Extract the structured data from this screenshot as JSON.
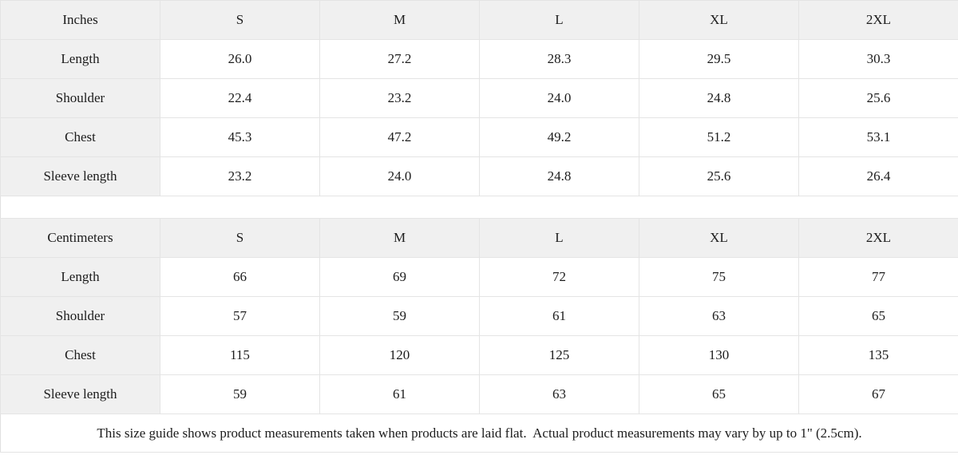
{
  "colors": {
    "header_bg": "#f0f0f0",
    "label_column_bg": "#f0f0f0",
    "border": "#e4e4e4",
    "text": "#1c1c1c",
    "background": "#ffffff"
  },
  "chart_data": {
    "type": "table",
    "tables": [
      {
        "unit_label": "Inches",
        "sizes": [
          "S",
          "M",
          "L",
          "XL",
          "2XL"
        ],
        "rows": [
          {
            "label": "Length",
            "values": [
              "26.0",
              "27.2",
              "28.3",
              "29.5",
              "30.3"
            ]
          },
          {
            "label": "Shoulder",
            "values": [
              "22.4",
              "23.2",
              "24.0",
              "24.8",
              "25.6"
            ]
          },
          {
            "label": "Chest",
            "values": [
              "45.3",
              "47.2",
              "49.2",
              "51.2",
              "53.1"
            ]
          },
          {
            "label": "Sleeve length",
            "values": [
              "23.2",
              "24.0",
              "24.8",
              "25.6",
              "26.4"
            ]
          }
        ]
      },
      {
        "unit_label": "Centimeters",
        "sizes": [
          "S",
          "M",
          "L",
          "XL",
          "2XL"
        ],
        "rows": [
          {
            "label": "Length",
            "values": [
              "66",
              "69",
              "72",
              "75",
              "77"
            ]
          },
          {
            "label": "Shoulder",
            "values": [
              "57",
              "59",
              "61",
              "63",
              "65"
            ]
          },
          {
            "label": "Chest",
            "values": [
              "115",
              "120",
              "125",
              "130",
              "135"
            ]
          },
          {
            "label": "Sleeve length",
            "values": [
              "59",
              "61",
              "63",
              "65",
              "67"
            ]
          }
        ]
      }
    ]
  },
  "footer_note": "This size guide shows product measurements taken when products are laid flat.  Actual product measurements may vary by up to 1\" (2.5cm)."
}
